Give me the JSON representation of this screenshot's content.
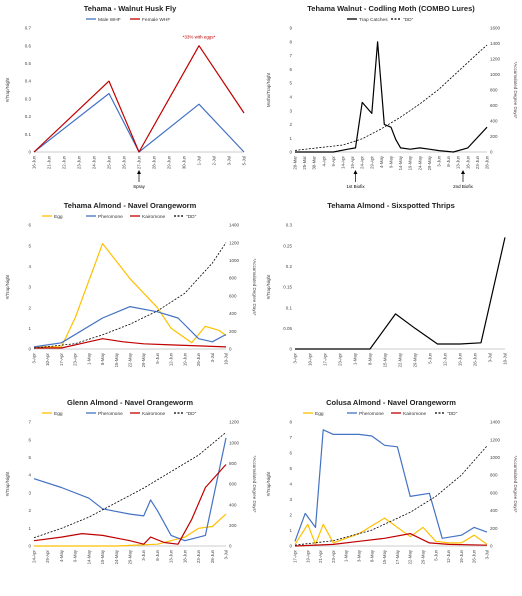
{
  "colors": {
    "male": "#4472C4",
    "female": "#C00000",
    "black": "#000000",
    "egg": "#FFC000",
    "pheromone": "#4472C4",
    "kairomone": "#C00000",
    "dd": "#000000"
  },
  "chart_data": [
    {
      "type": "line",
      "title": "Tehama - Walnut Husk Fly",
      "ylabel": "#/Trap/Night",
      "y2label": "",
      "ylim": [
        0,
        0.7
      ],
      "yticks": [
        0,
        0.1,
        0.2,
        0.3,
        0.4,
        0.5,
        0.6,
        0.7
      ],
      "y2lim": null,
      "y2ticks": [],
      "categories": [
        "16-Jun",
        "21-Jun",
        "22-Jun",
        "23-Jun",
        "24-Jun",
        "25-Jun",
        "26-Jun",
        "27-Jun",
        "28-Jun",
        "29-Jun",
        "30-Jun",
        "1-Jul",
        "2-Jul",
        "3-Jul",
        "5-Jul"
      ],
      "series": [
        {
          "name": "Male WHF",
          "color": "#4472C4",
          "dash": false,
          "axis": "left",
          "points": [
            [
              0,
              0
            ],
            [
              5,
              0.33
            ],
            [
              7,
              0
            ],
            [
              11,
              0.27
            ],
            [
              14,
              0
            ]
          ]
        },
        {
          "name": "Female WHF",
          "color": "#C00000",
          "dash": false,
          "axis": "left",
          "points": [
            [
              0,
              0
            ],
            [
              5,
              0.4
            ],
            [
              7,
              0
            ],
            [
              11,
              0.6
            ],
            [
              14,
              0.22
            ]
          ]
        }
      ],
      "annotations": [
        {
          "text": "*33% with eggs*",
          "x": 11,
          "y": 0.64,
          "color": "#C00000"
        }
      ],
      "arrows": [
        {
          "text": "Spray",
          "x": 7
        }
      ],
      "legend": "top-center"
    },
    {
      "type": "line",
      "title": "Tehama Walnut - Codling Moth (COMBO Lures)",
      "ylabel": "Moths/Trap/Night",
      "y2label": "*Accumulated Degree Days*",
      "ylim": [
        0,
        9
      ],
      "yticks": [
        0,
        1,
        2,
        3,
        4,
        5,
        6,
        7,
        8,
        9
      ],
      "y2lim": [
        0,
        1600
      ],
      "y2ticks": [
        0,
        200,
        400,
        600,
        800,
        1000,
        1200,
        1400,
        1600
      ],
      "categories": [
        "20-Mar",
        "25-Mar",
        "30-Mar",
        "4-Apr",
        "9-Apr",
        "14-Apr",
        "19-Apr",
        "24-Apr",
        "29-Apr",
        "4-May",
        "9-May",
        "14-May",
        "19-May",
        "24-May",
        "29-May",
        "3-Jun",
        "8-Jun",
        "13-Jun",
        "18-Jun",
        "23-Jun",
        "28-Jun"
      ],
      "series": [
        {
          "name": "Trap Catches",
          "color": "#000000",
          "dash": false,
          "axis": "left",
          "points": [
            [
              0,
              0
            ],
            [
              4,
              0
            ],
            [
              5.5,
              0.2
            ],
            [
              6.3,
              0.3
            ],
            [
              7,
              3.6
            ],
            [
              8,
              2.8
            ],
            [
              8.6,
              8
            ],
            [
              9.3,
              2
            ],
            [
              10,
              1.8
            ],
            [
              10.5,
              0.9
            ],
            [
              11,
              0.3
            ],
            [
              12,
              0.2
            ],
            [
              13,
              0.3
            ],
            [
              14,
              0.2
            ],
            [
              15,
              0.1
            ],
            [
              16.5,
              0
            ],
            [
              18,
              0.3
            ],
            [
              20,
              1.8
            ]
          ]
        },
        {
          "name": "\"DD\"",
          "color": "#000000",
          "dash": true,
          "axis": "right",
          "points": [
            [
              0,
              20
            ],
            [
              5,
              90
            ],
            [
              7,
              170
            ],
            [
              9,
              300
            ],
            [
              11,
              450
            ],
            [
              13,
              620
            ],
            [
              15,
              810
            ],
            [
              17,
              1040
            ],
            [
              19,
              1270
            ],
            [
              20,
              1380
            ]
          ]
        }
      ],
      "annotations": [],
      "arrows": [
        {
          "text": "1st Biofix",
          "x": 6.3
        },
        {
          "text": "2nd Biofix",
          "x": 17.5
        }
      ],
      "legend": "top-center"
    },
    {
      "type": "line",
      "title": "Tehama Almond - Navel Orangeworm",
      "ylabel": "#/Trap/Night",
      "y2label": "*Accumulated Degree Days*",
      "ylim": [
        0,
        6
      ],
      "yticks": [
        0,
        1,
        2,
        3,
        4,
        5,
        6
      ],
      "y2lim": [
        0,
        1400
      ],
      "y2ticks": [
        0,
        200,
        400,
        600,
        800,
        1000,
        1200,
        1400
      ],
      "categories": [
        "3-Apr",
        "10-Apr",
        "17-Apr",
        "23-Apr",
        "1-May",
        "8-May",
        "15-May",
        "22-May",
        "29-May",
        "5-Jun",
        "12-Jun",
        "19-Jun",
        "26-Jun",
        "3-Jul",
        "10-Jul"
      ],
      "series": [
        {
          "name": "Egg",
          "color": "#FFC000",
          "dash": false,
          "axis": "left",
          "points": [
            [
              0,
              0.1
            ],
            [
              2,
              0.1
            ],
            [
              3,
              1.5
            ],
            [
              5,
              5.1
            ],
            [
              7,
              3.4
            ],
            [
              9,
              2
            ],
            [
              10,
              1
            ],
            [
              11.5,
              0.3
            ],
            [
              12.5,
              1.1
            ],
            [
              13.5,
              0.9
            ],
            [
              14,
              0.65
            ]
          ]
        },
        {
          "name": "Pheromone",
          "color": "#4472C4",
          "dash": false,
          "axis": "left",
          "points": [
            [
              0,
              0.1
            ],
            [
              2,
              0.3
            ],
            [
              5,
              1.5
            ],
            [
              7,
              2.05
            ],
            [
              9,
              1.8
            ],
            [
              10.5,
              1.5
            ],
            [
              12,
              0.5
            ],
            [
              13,
              0.35
            ],
            [
              14,
              0.7
            ]
          ]
        },
        {
          "name": "Kairomone",
          "color": "#C00000",
          "dash": false,
          "axis": "left",
          "points": [
            [
              0,
              0.05
            ],
            [
              2,
              0.05
            ],
            [
              4,
              0.35
            ],
            [
              5,
              0.5
            ],
            [
              6.5,
              0.35
            ],
            [
              8,
              0.25
            ],
            [
              10,
              0.2
            ],
            [
              12,
              0.15
            ],
            [
              14,
              0.1
            ]
          ]
        },
        {
          "name": "\"DD\"",
          "color": "#000000",
          "dash": true,
          "axis": "right",
          "points": [
            [
              0,
              10
            ],
            [
              3,
              60
            ],
            [
              5,
              160
            ],
            [
              7,
              280
            ],
            [
              9,
              430
            ],
            [
              11,
              630
            ],
            [
              12,
              800
            ],
            [
              13,
              970
            ],
            [
              14,
              1200
            ]
          ]
        }
      ],
      "annotations": [],
      "arrows": [],
      "legend": "top-center"
    },
    {
      "type": "line",
      "title": "Tehama Almond - Sixspotted Thrips",
      "ylabel": "#/Trap/Night",
      "y2label": "",
      "ylim": [
        0,
        0.3
      ],
      "yticks": [
        0,
        0.05,
        0.1,
        0.15,
        0.2,
        0.25,
        0.3
      ],
      "y2lim": null,
      "y2ticks": [],
      "categories": [
        "3-Apr",
        "10-Apr",
        "17-Apr",
        "23-Apr",
        "1-May",
        "8-May",
        "15-May",
        "22-May",
        "29-May",
        "5-Jun",
        "12-Jun",
        "19-Jun",
        "26-Jun",
        "3-Jul",
        "10-Jul"
      ],
      "series": [
        {
          "name": "Thrips",
          "color": "#000000",
          "dash": false,
          "axis": "left",
          "points": [
            [
              0,
              0
            ],
            [
              5,
              0
            ],
            [
              6.7,
              0.085
            ],
            [
              8,
              0.05
            ],
            [
              9.5,
              0.012
            ],
            [
              11,
              0.012
            ],
            [
              12.4,
              0.015
            ],
            [
              14,
              0.27
            ]
          ]
        }
      ],
      "annotations": [],
      "arrows": [],
      "legend": "none"
    },
    {
      "type": "line",
      "title": "Glenn Almond - Navel Orangeworm",
      "ylabel": "#/Trap/Night",
      "y2label": "*Accumulated Degree Days*",
      "ylim": [
        0,
        7
      ],
      "yticks": [
        0,
        1,
        2,
        3,
        4,
        5,
        6,
        7
      ],
      "y2lim": [
        0,
        1200
      ],
      "y2ticks": [
        0,
        200,
        400,
        600,
        800,
        1000,
        1200
      ],
      "categories": [
        "24-Apr",
        "29-Apr",
        "4-May",
        "9-May",
        "14-May",
        "19-May",
        "24-May",
        "29-May",
        "3-Jun",
        "8-Jun",
        "13-Jun",
        "18-Jun",
        "23-Jun",
        "28-Jun",
        "3-Jul"
      ],
      "series": [
        {
          "name": "Egg",
          "color": "#FFC000",
          "dash": false,
          "axis": "left",
          "points": [
            [
              0,
              0
            ],
            [
              3,
              0
            ],
            [
              6,
              0
            ],
            [
              9,
              0.1
            ],
            [
              11,
              0.5
            ],
            [
              12,
              1.0
            ],
            [
              13,
              1.1
            ],
            [
              14,
              1.8
            ]
          ]
        },
        {
          "name": "Pheromone",
          "color": "#4472C4",
          "dash": false,
          "axis": "left",
          "points": [
            [
              0,
              3.8
            ],
            [
              2,
              3.3
            ],
            [
              4,
              2.7
            ],
            [
              5,
              2.1
            ],
            [
              7,
              1.8
            ],
            [
              8,
              1.7
            ],
            [
              8.5,
              2.6
            ],
            [
              9,
              2
            ],
            [
              10,
              0.6
            ],
            [
              11,
              0.3
            ],
            [
              12.5,
              0.6
            ],
            [
              14,
              6.1
            ]
          ]
        },
        {
          "name": "Kairomone",
          "color": "#C00000",
          "dash": false,
          "axis": "left",
          "points": [
            [
              0,
              0.3
            ],
            [
              2,
              0.5
            ],
            [
              3.5,
              0.7
            ],
            [
              5,
              0.6
            ],
            [
              7,
              0.3
            ],
            [
              8,
              0.1
            ],
            [
              8.5,
              0.5
            ],
            [
              9.5,
              0.2
            ],
            [
              10.5,
              0.1
            ],
            [
              11.5,
              1.5
            ],
            [
              12.5,
              3.3
            ],
            [
              14,
              4.6
            ]
          ]
        },
        {
          "name": "\"DD\"",
          "color": "#000000",
          "dash": true,
          "axis": "right",
          "points": [
            [
              0,
              80
            ],
            [
              2,
              170
            ],
            [
              4,
              280
            ],
            [
              6,
              420
            ],
            [
              8,
              560
            ],
            [
              10,
              720
            ],
            [
              12,
              880
            ],
            [
              14,
              1100
            ]
          ]
        }
      ],
      "annotations": [],
      "arrows": [],
      "legend": "top-center"
    },
    {
      "type": "line",
      "title": "Colusa Almond - Navel Orangeworm",
      "ylabel": "#/Trap/Night",
      "y2label": "*Accumulated Degree Days*",
      "ylim": [
        0,
        8
      ],
      "yticks": [
        0,
        1,
        2,
        3,
        4,
        5,
        6,
        7,
        8
      ],
      "y2lim": [
        0,
        1400
      ],
      "y2ticks": [
        0,
        200,
        400,
        600,
        800,
        1000,
        1200,
        1400
      ],
      "categories": [
        "17-Apr",
        "19-Apr",
        "21-Apr",
        "23-Apr",
        "1-May",
        "3-May",
        "8-May",
        "15-May",
        "17-May",
        "22-May",
        "29-May",
        "5-Jun",
        "12-Jun",
        "19-Jun",
        "26-Jun",
        "3-Jul"
      ],
      "series": [
        {
          "name": "Egg",
          "color": "#FFC000",
          "dash": false,
          "axis": "left",
          "points": [
            [
              0,
              0.1
            ],
            [
              1,
              1.4
            ],
            [
              1.6,
              0.1
            ],
            [
              2.2,
              1.4
            ],
            [
              3,
              0.2
            ],
            [
              5,
              0.8
            ],
            [
              7,
              1.8
            ],
            [
              9,
              0.6
            ],
            [
              10,
              1.2
            ],
            [
              11,
              0.3
            ],
            [
              12,
              0.2
            ],
            [
              13,
              0.2
            ],
            [
              14,
              0.7
            ],
            [
              15,
              0.1
            ]
          ]
        },
        {
          "name": "Pheromone",
          "color": "#4472C4",
          "dash": false,
          "axis": "left",
          "points": [
            [
              0,
              0.3
            ],
            [
              0.8,
              2.1
            ],
            [
              1.6,
              1.2
            ],
            [
              2.2,
              7.5
            ],
            [
              3,
              7.2
            ],
            [
              5,
              7.2
            ],
            [
              6,
              7.1
            ],
            [
              7,
              6.5
            ],
            [
              8,
              6.4
            ],
            [
              9,
              3.2
            ],
            [
              10.5,
              3.4
            ],
            [
              11.5,
              0.5
            ],
            [
              13,
              0.7
            ],
            [
              14,
              1.2
            ],
            [
              15,
              0.9
            ]
          ]
        },
        {
          "name": "Kairomone",
          "color": "#C00000",
          "dash": false,
          "axis": "left",
          "points": [
            [
              0,
              0
            ],
            [
              3,
              0.1
            ],
            [
              5,
              0.3
            ],
            [
              7,
              0.5
            ],
            [
              9,
              0.8
            ],
            [
              10.5,
              0.2
            ],
            [
              12,
              0.1
            ],
            [
              15,
              0.05
            ]
          ]
        },
        {
          "name": "\"DD\"",
          "color": "#000000",
          "dash": true,
          "axis": "right",
          "points": [
            [
              0,
              10
            ],
            [
              3,
              60
            ],
            [
              6,
              180
            ],
            [
              9,
              380
            ],
            [
              11,
              560
            ],
            [
              13,
              800
            ],
            [
              15,
              1130
            ]
          ]
        }
      ],
      "annotations": [],
      "arrows": [],
      "legend": "top-center"
    }
  ]
}
